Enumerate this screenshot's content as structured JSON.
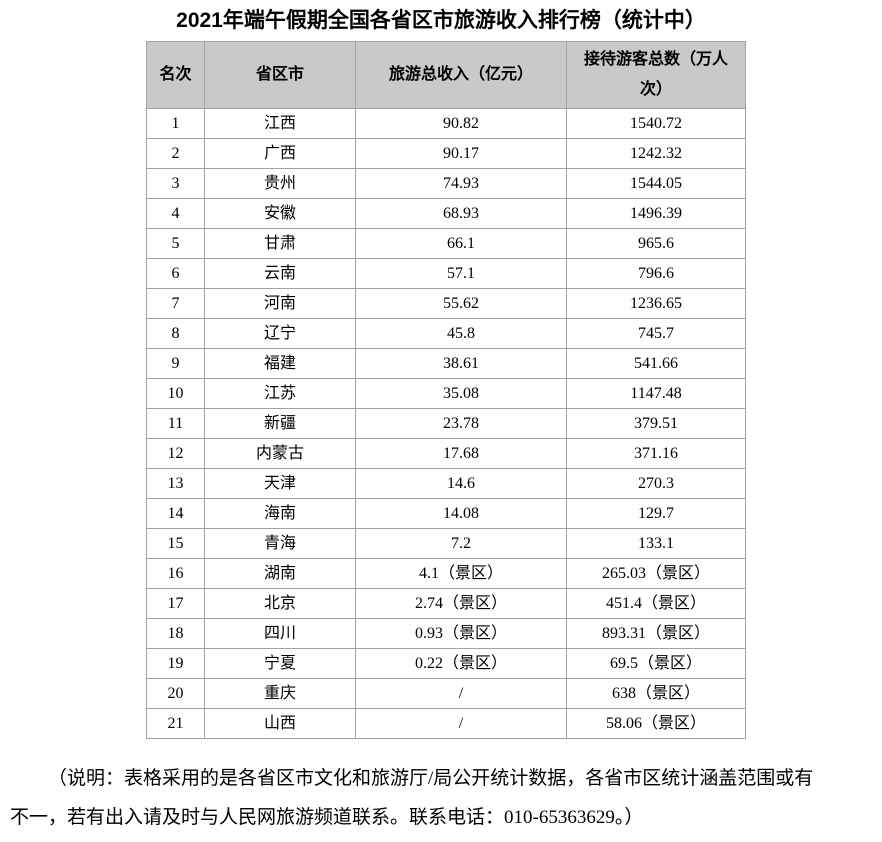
{
  "page": {
    "title": "2021年端午假期全国各省区市旅游收入排行榜（统计中）"
  },
  "table": {
    "columns": [
      "名次",
      "省区市",
      "旅游总收入（亿元）",
      "接待游客总数（万人次）"
    ],
    "rows": [
      [
        "1",
        "江西",
        "90.82",
        "1540.72"
      ],
      [
        "2",
        "广西",
        "90.17",
        "1242.32"
      ],
      [
        "3",
        "贵州",
        "74.93",
        "1544.05"
      ],
      [
        "4",
        "安徽",
        "68.93",
        "1496.39"
      ],
      [
        "5",
        "甘肃",
        "66.1",
        "965.6"
      ],
      [
        "6",
        "云南",
        "57.1",
        "796.6"
      ],
      [
        "7",
        "河南",
        "55.62",
        "1236.65"
      ],
      [
        "8",
        "辽宁",
        "45.8",
        "745.7"
      ],
      [
        "9",
        "福建",
        "38.61",
        "541.66"
      ],
      [
        "10",
        "江苏",
        "35.08",
        "1147.48"
      ],
      [
        "11",
        "新疆",
        "23.78",
        "379.51"
      ],
      [
        "12",
        "内蒙古",
        "17.68",
        "371.16"
      ],
      [
        "13",
        "天津",
        "14.6",
        "270.3"
      ],
      [
        "14",
        "海南",
        "14.08",
        "129.7"
      ],
      [
        "15",
        "青海",
        "7.2",
        "133.1"
      ],
      [
        "16",
        "湖南",
        "4.1（景区）",
        "265.03（景区）"
      ],
      [
        "17",
        "北京",
        "2.74（景区）",
        "451.4（景区）"
      ],
      [
        "18",
        "四川",
        "0.93（景区）",
        "893.31（景区）"
      ],
      [
        "19",
        "宁夏",
        "0.22（景区）",
        "69.5（景区）"
      ],
      [
        "20",
        "重庆",
        "/",
        "638（景区）"
      ],
      [
        "21",
        "山西",
        "/",
        "58.06（景区）"
      ]
    ]
  },
  "note": {
    "text": "（说明：表格采用的是各省区市文化和旅游厅/局公开统计数据，各省市区统计涵盖范围或有不一，若有出入请及时与人民网旅游频道联系。联系电话：010-65363629。）"
  },
  "colors": {
    "header_bg": "#c9c9c9",
    "border": "#a3a3a3",
    "text": "#000000"
  }
}
